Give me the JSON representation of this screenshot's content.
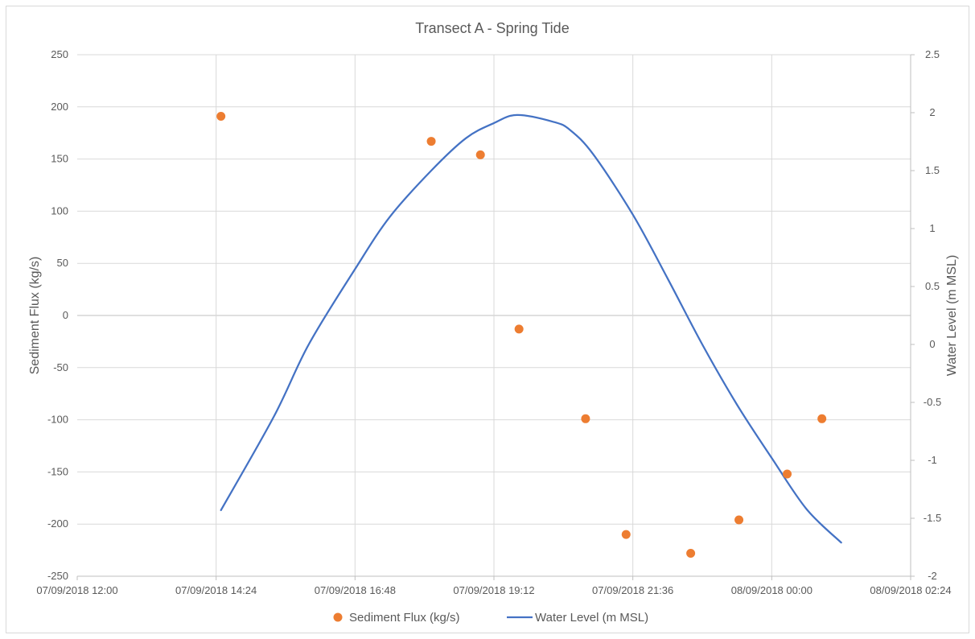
{
  "chart_data": {
    "type": "scatter",
    "title": "Transect  A - Spring Tide",
    "x_ticks": [
      "07/09/2018 12:00",
      "07/09/2018 14:24",
      "07/09/2018 16:48",
      "07/09/2018 19:12",
      "07/09/2018 21:36",
      "08/09/2018 00:00",
      "08/09/2018 02:24"
    ],
    "y_left": {
      "label": "Sediment Flux (kg/s)",
      "range": [
        -250,
        250
      ],
      "ticks": [
        "250",
        "200",
        "150",
        "100",
        "50",
        "0",
        "-50",
        "-100",
        "-150",
        "-200",
        "-250"
      ]
    },
    "y_right": {
      "label": "Water Level (m MSL)",
      "range": [
        -2,
        2.5
      ],
      "ticks": [
        "2.5",
        "2",
        "1.5",
        "1",
        "0.5",
        "0",
        "-0.5",
        "-1",
        "-1.5",
        "-2"
      ]
    },
    "grid": true,
    "legend_position": "bottom",
    "series": [
      {
        "name": "Sediment Flux (kg/s)",
        "type": "scatter",
        "axis": "left",
        "color": "#ed7d31",
        "points": [
          {
            "x": "07/09/2018 14:29",
            "y": 191
          },
          {
            "x": "07/09/2018 18:07",
            "y": 167
          },
          {
            "x": "07/09/2018 18:58",
            "y": 154
          },
          {
            "x": "07/09/2018 19:38",
            "y": -13
          },
          {
            "x": "07/09/2018 20:47",
            "y": -99
          },
          {
            "x": "07/09/2018 21:29",
            "y": -210
          },
          {
            "x": "07/09/2018 22:36",
            "y": -228
          },
          {
            "x": "07/09/2018 23:26",
            "y": -196
          },
          {
            "x": "08/09/2018 00:16",
            "y": -152
          },
          {
            "x": "08/09/2018 00:52",
            "y": -99
          }
        ]
      },
      {
        "name": "Water Level (m MSL)",
        "type": "line",
        "axis": "right",
        "color": "#4472c4",
        "points": [
          {
            "x": "07/09/2018 14:29",
            "y": -1.43
          },
          {
            "x": "07/09/2018 15:24",
            "y": -0.62
          },
          {
            "x": "07/09/2018 16:00",
            "y": 0.0
          },
          {
            "x": "07/09/2018 16:48",
            "y": 0.65
          },
          {
            "x": "07/09/2018 17:24",
            "y": 1.1
          },
          {
            "x": "07/09/2018 18:07",
            "y": 1.5
          },
          {
            "x": "07/09/2018 18:43",
            "y": 1.78
          },
          {
            "x": "07/09/2018 19:12",
            "y": 1.91
          },
          {
            "x": "07/09/2018 19:36",
            "y": 1.98
          },
          {
            "x": "07/09/2018 20:14",
            "y": 1.92
          },
          {
            "x": "07/09/2018 20:31",
            "y": 1.85
          },
          {
            "x": "07/09/2018 20:55",
            "y": 1.64
          },
          {
            "x": "07/09/2018 21:36",
            "y": 1.12
          },
          {
            "x": "07/09/2018 22:12",
            "y": 0.57
          },
          {
            "x": "07/09/2018 22:48",
            "y": 0.0
          },
          {
            "x": "07/09/2018 23:24",
            "y": -0.52
          },
          {
            "x": "08/09/2018 00:00",
            "y": -0.98
          },
          {
            "x": "08/09/2018 00:36",
            "y": -1.42
          },
          {
            "x": "08/09/2018 01:12",
            "y": -1.71
          }
        ]
      }
    ]
  }
}
